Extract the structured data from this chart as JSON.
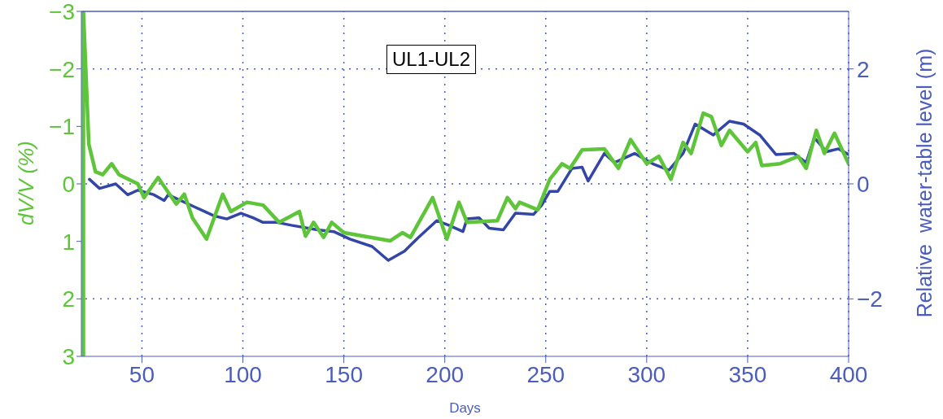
{
  "chart_data": {
    "type": "line",
    "xlabel": "Days",
    "ylabel": "dV/V (%)",
    "y2label": "Relative  water-table level (m)",
    "annotations": [
      "UL1-UL2"
    ],
    "xlim": [
      20,
      400
    ],
    "xticks": [
      50,
      100,
      150,
      200,
      250,
      300,
      350,
      400
    ],
    "ylim": [
      3,
      -3
    ],
    "yticks": [
      -3,
      -2,
      -1,
      0,
      1,
      2,
      3
    ],
    "y2lim": [
      -3,
      3
    ],
    "y2ticks": [
      -2,
      0,
      2
    ],
    "grid": true,
    "marker": "none",
    "line_style": "solid",
    "series": [
      {
        "color": "#5ec43a",
        "x": [
          21,
          21,
          23.7,
          27,
          30.6,
          35,
          38.7,
          48,
          51,
          58,
          67,
          71,
          75,
          82,
          90,
          94,
          102,
          110,
          118,
          128,
          131,
          135,
          140,
          144,
          150,
          173,
          179,
          183,
          194,
          201,
          207,
          211,
          226,
          231,
          235,
          237,
          246,
          252,
          258,
          262,
          268,
          279,
          286,
          292,
          300,
          306,
          312,
          318,
          322,
          328,
          332,
          337,
          341,
          350,
          354,
          357,
          366,
          375,
          379,
          384,
          388,
          393,
          400
        ],
        "values": [
          3,
          -3,
          -0.69,
          -0.21,
          -0.16,
          -0.35,
          -0.16,
          0,
          0.24,
          -0.11,
          0.35,
          0.18,
          0.59,
          0.96,
          0.18,
          0.48,
          0.32,
          0.37,
          0.67,
          0.48,
          0.91,
          0.67,
          0.93,
          0.67,
          0.85,
          0.99,
          0.85,
          0.93,
          0.24,
          0.96,
          0.32,
          0.67,
          0.64,
          0.24,
          0.43,
          0.32,
          0.45,
          -0.08,
          -0.35,
          -0.27,
          -0.59,
          -0.61,
          -0.27,
          -0.77,
          -0.35,
          -0.48,
          -0.08,
          -0.72,
          -0.53,
          -1.23,
          -1.17,
          -0.67,
          -0.93,
          -0.56,
          -0.72,
          -0.32,
          -0.35,
          -0.48,
          -0.27,
          -0.93,
          -0.53,
          -0.88,
          -0.35
        ]
      },
      {
        "color": "#3346a8",
        "axis": "y2",
        "x": [
          24,
          29,
          37,
          43,
          48,
          56,
          61,
          63,
          76,
          86,
          92,
          99,
          105,
          110,
          117,
          124,
          137,
          145,
          153,
          164,
          172,
          180,
          187,
          196,
          202,
          209,
          211,
          217,
          222,
          229,
          235,
          244,
          248,
          252,
          256,
          263,
          268,
          271,
          279,
          284,
          294,
          303,
          311,
          318,
          324,
          333,
          341,
          348,
          356,
          364,
          373,
          379,
          383,
          389,
          395,
          400
        ],
        "values": [
          0.08,
          -0.08,
          0,
          -0.19,
          -0.11,
          -0.19,
          -0.29,
          -0.19,
          -0.4,
          -0.56,
          -0.61,
          -0.51,
          -0.59,
          -0.67,
          -0.67,
          -0.72,
          -0.8,
          -0.83,
          -0.96,
          -1.09,
          -1.33,
          -1.17,
          -0.93,
          -0.64,
          -0.72,
          -0.83,
          -0.61,
          -0.59,
          -0.77,
          -0.8,
          -0.51,
          -0.53,
          -0.37,
          -0.13,
          -0.13,
          0.27,
          0.29,
          0.05,
          0.53,
          0.37,
          0.53,
          0.35,
          0.24,
          0.53,
          1.04,
          0.85,
          1.09,
          1.04,
          0.85,
          0.51,
          0.53,
          0.37,
          0.8,
          0.56,
          0.61,
          0.51
        ]
      }
    ]
  }
}
